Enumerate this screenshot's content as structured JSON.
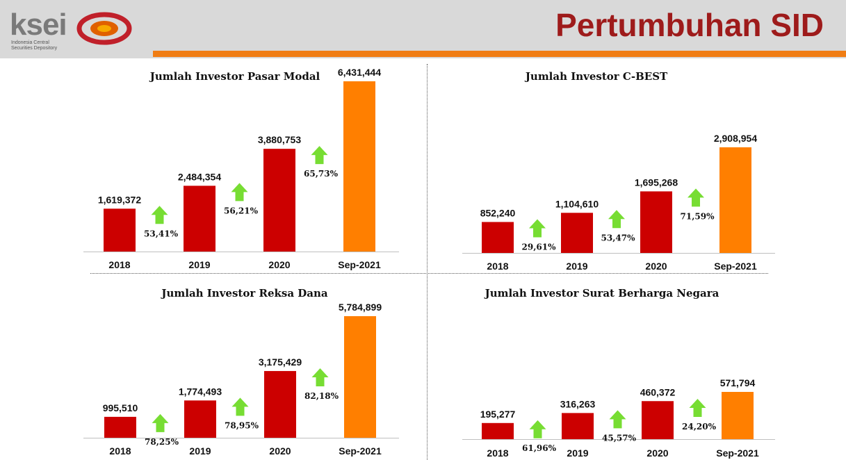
{
  "header": {
    "logo_text": "ksei",
    "logo_subtitle_line1": "Indonesia Central",
    "logo_subtitle_line2": "Securities Depository",
    "title": "Pertumbuhan SID"
  },
  "colors": {
    "header_band": "#d9d9d9",
    "accent_orange": "#f07d14",
    "title_red": "#9e1b1b",
    "bar_red": "#cc0000",
    "bar_orange": "#ff7f00",
    "arrow_green": "#77dd33"
  },
  "icons": {
    "growth": "green-up-arrow-icon",
    "logo": "ksei-logo-icon"
  },
  "chart_data": [
    {
      "type": "bar",
      "title": "Jumlah Investor Pasar Modal",
      "categories": [
        "2018",
        "2019",
        "2020",
        "Sep-2021"
      ],
      "values": [
        1619372,
        2484354,
        3880753,
        6431444
      ],
      "value_labels": [
        "1,619,372",
        "2,484,354",
        "3,880,753",
        "6,431,444"
      ],
      "growth": [
        "53,41%",
        "56,21%",
        "65,73%"
      ],
      "bar_colors": [
        "#cc0000",
        "#cc0000",
        "#cc0000",
        "#ff7f00"
      ],
      "grid": false
    },
    {
      "type": "bar",
      "title": "Jumlah Investor C-BEST",
      "categories": [
        "2018",
        "2019",
        "2020",
        "Sep-2021"
      ],
      "values": [
        852240,
        1104610,
        1695268,
        2908954
      ],
      "value_labels": [
        "852,240",
        "1,104,610",
        "1,695,268",
        "2,908,954"
      ],
      "growth": [
        "29,61%",
        "53,47%",
        "71,59%"
      ],
      "bar_colors": [
        "#cc0000",
        "#cc0000",
        "#cc0000",
        "#ff7f00"
      ],
      "grid": false
    },
    {
      "type": "bar",
      "title": "Jumlah Investor Reksa Dana",
      "categories": [
        "2018",
        "2019",
        "2020",
        "Sep-2021"
      ],
      "values": [
        995510,
        1774493,
        3175429,
        5784899
      ],
      "value_labels": [
        "995,510",
        "1,774,493",
        "3,175,429",
        "5,784,899"
      ],
      "growth": [
        "78,25%",
        "78,95%",
        "82,18%"
      ],
      "bar_colors": [
        "#cc0000",
        "#cc0000",
        "#cc0000",
        "#ff7f00"
      ],
      "grid": false
    },
    {
      "type": "bar",
      "title": "Jumlah Investor Surat Berharga Negara",
      "categories": [
        "2018",
        "2019",
        "2020",
        "Sep-2021"
      ],
      "values": [
        195277,
        316263,
        460372,
        571794
      ],
      "value_labels": [
        "195,277",
        "316,263",
        "460,372",
        "571,794"
      ],
      "growth": [
        "61,96%",
        "45,57%",
        "24,20%"
      ],
      "bar_colors": [
        "#cc0000",
        "#cc0000",
        "#cc0000",
        "#ff7f00"
      ],
      "grid": false
    }
  ]
}
